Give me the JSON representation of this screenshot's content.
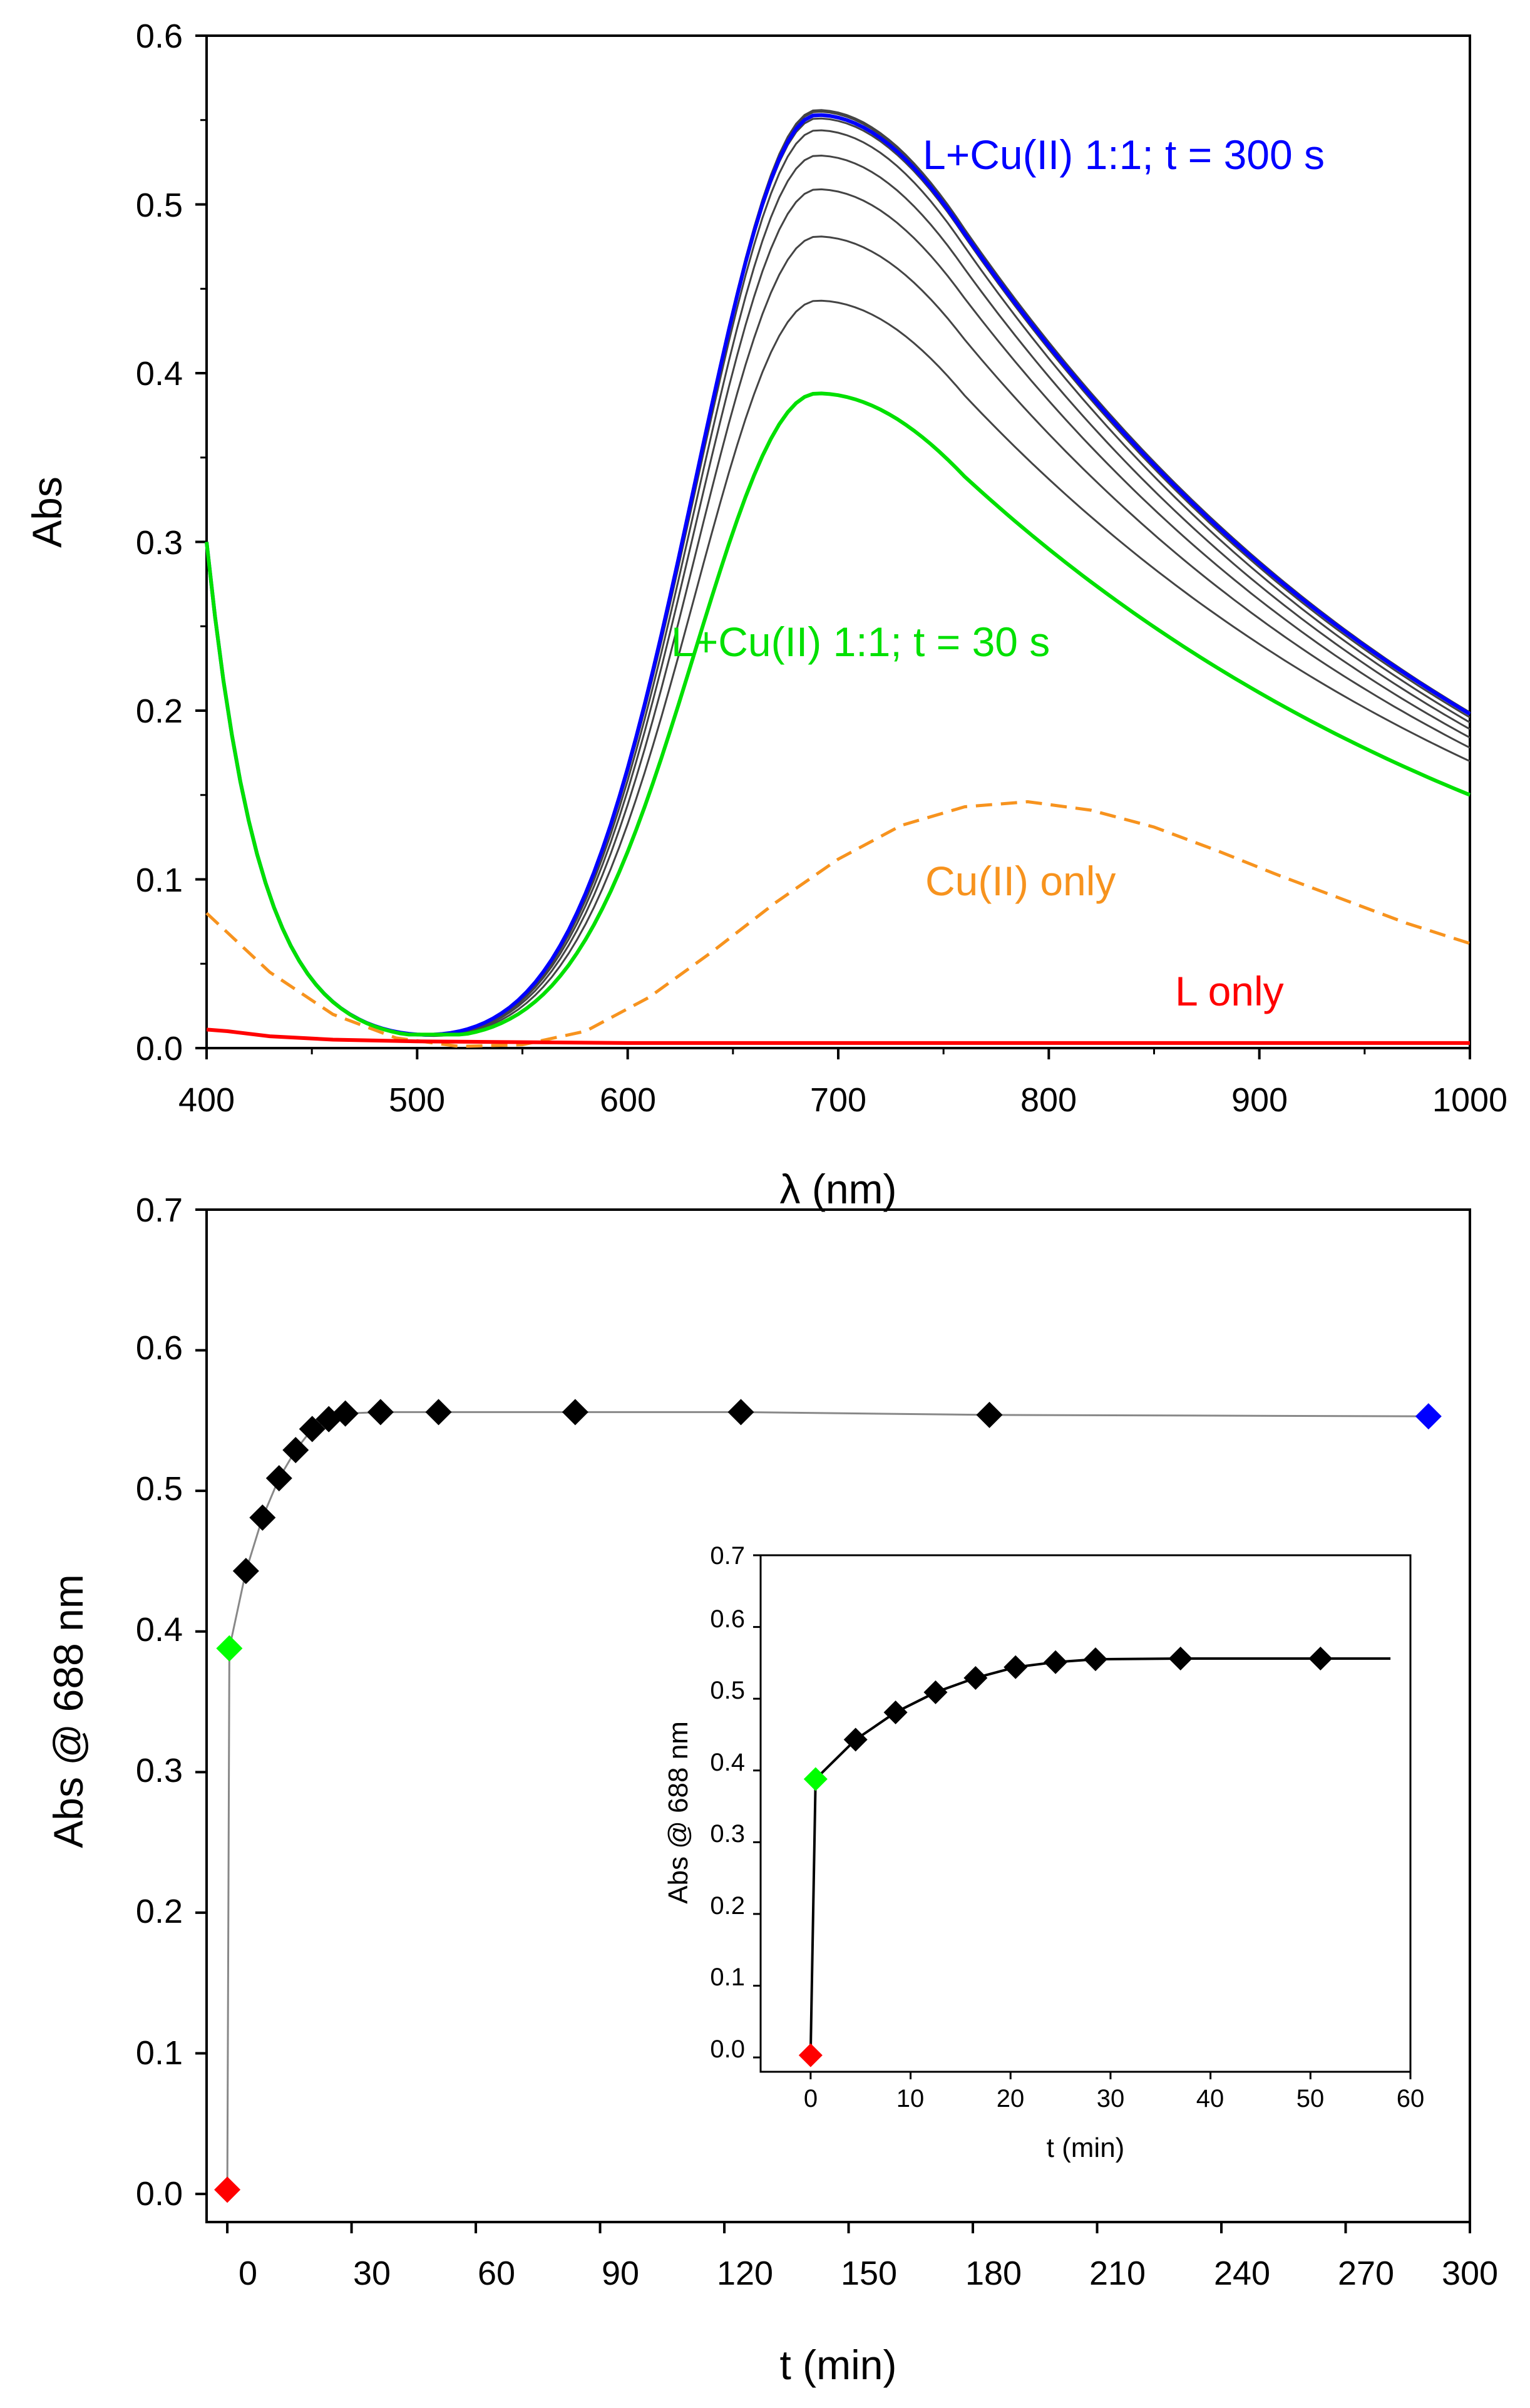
{
  "chart_data": [
    {
      "type": "line",
      "title": "",
      "xlabel": "λ (nm)",
      "ylabel": "Abs",
      "xlim": [
        400,
        1000
      ],
      "ylim": [
        0,
        0.6
      ],
      "xticks": [
        "400",
        "500",
        "600",
        "700",
        "800",
        "900",
        "1000"
      ],
      "yticks": [
        "0.0",
        "0.1",
        "0.2",
        "0.3",
        "0.4",
        "0.5",
        "0.6"
      ],
      "series": [
        {
          "name": "L+Cu(II) 1:1; t = 300 s",
          "color": "#0000ff",
          "style": "solid",
          "peak": 0.553,
          "start": 0.3,
          "min": 0.013,
          "tail": 0.198
        },
        {
          "name": "L+Cu(II) 1:1; t = 30 s",
          "color": "#00e000",
          "style": "solid",
          "peak": 0.388,
          "start": 0.3,
          "min": 0.016,
          "tail": 0.15
        },
        {
          "name": "Cu(II) only",
          "color": "#f7931e",
          "style": "dashed",
          "x": [
            400,
            430,
            460,
            490,
            520,
            550,
            580,
            610,
            640,
            670,
            700,
            730,
            760,
            790,
            820,
            850,
            880,
            910,
            940,
            970,
            1000
          ],
          "y": [
            0.08,
            0.045,
            0.02,
            0.006,
            0.001,
            0.002,
            0.01,
            0.03,
            0.057,
            0.086,
            0.112,
            0.132,
            0.143,
            0.146,
            0.141,
            0.131,
            0.117,
            0.102,
            0.088,
            0.074,
            0.062
          ]
        },
        {
          "name": "L only",
          "color": "#ff0000",
          "style": "solid",
          "x": [
            400,
            410,
            430,
            460,
            500,
            600,
            700,
            800,
            900,
            1000
          ],
          "y": [
            0.011,
            0.01,
            0.007,
            0.005,
            0.004,
            0.003,
            0.003,
            0.003,
            0.003,
            0.003
          ]
        }
      ],
      "intermediate_series": {
        "color": "#444444",
        "peaks": [
          0.443,
          0.481,
          0.509,
          0.529,
          0.544,
          0.551,
          0.555,
          0.556
        ],
        "tails": [
          0.17,
          0.178,
          0.184,
          0.189,
          0.193,
          0.196,
          0.198,
          0.199
        ]
      },
      "annotations": [
        {
          "text": "L+Cu(II) 1:1; t = 300 s",
          "color": "#0000ff"
        },
        {
          "text": "L+Cu(II) 1:1; t = 30 s",
          "color": "#00e000"
        },
        {
          "text": "Cu(II) only",
          "color": "#f7931e"
        },
        {
          "text": "L only",
          "color": "#ff0000"
        }
      ]
    },
    {
      "type": "scatter",
      "title": "",
      "xlabel": "t (min)",
      "ylabel": "Abs @ 688 nm",
      "xlim": [
        -5,
        300
      ],
      "ylim": [
        -0.02,
        0.7
      ],
      "xticks": [
        "0",
        "30",
        "60",
        "90",
        "120",
        "150",
        "180",
        "210",
        "240",
        "270",
        "300"
      ],
      "yticks": [
        "0.0",
        "0.1",
        "0.2",
        "0.3",
        "0.4",
        "0.5",
        "0.6",
        "0.7"
      ],
      "line_color": "#888888",
      "points": {
        "x": [
          0,
          0.5,
          4.5,
          8.5,
          12.5,
          16.5,
          20.5,
          24.5,
          28.5,
          37,
          51,
          84,
          124,
          184,
          290
        ],
        "y": [
          0.003,
          0.388,
          0.443,
          0.481,
          0.509,
          0.529,
          0.544,
          0.551,
          0.555,
          0.556,
          0.556,
          0.556,
          0.556,
          0.554,
          0.553
        ],
        "colors": [
          "#ff0000",
          "#00ff00",
          "#000000",
          "#000000",
          "#000000",
          "#000000",
          "#000000",
          "#000000",
          "#000000",
          "#000000",
          "#000000",
          "#000000",
          "#000000",
          "#000000",
          "#0000ff"
        ]
      }
    },
    {
      "type": "scatter",
      "title": "",
      "xlabel": "t (min)",
      "ylabel": "Abs @ 688 nm",
      "xlim": [
        -5,
        60
      ],
      "ylim": [
        -0.02,
        0.7
      ],
      "xticks": [
        "0",
        "10",
        "20",
        "30",
        "40",
        "50",
        "60"
      ],
      "yticks": [
        "0.0",
        "0.1",
        "0.2",
        "0.3",
        "0.4",
        "0.5",
        "0.6",
        "0.7"
      ],
      "line_color": "#000000",
      "line_end_x": 58,
      "points": {
        "x": [
          0,
          0.5,
          4.5,
          8.5,
          12.5,
          16.5,
          20.5,
          24.5,
          28.5,
          37,
          51
        ],
        "y": [
          0.003,
          0.388,
          0.443,
          0.481,
          0.509,
          0.529,
          0.544,
          0.551,
          0.555,
          0.556,
          0.556
        ],
        "colors": [
          "#ff0000",
          "#00ff00",
          "#000000",
          "#000000",
          "#000000",
          "#000000",
          "#000000",
          "#000000",
          "#000000",
          "#000000",
          "#000000"
        ]
      }
    }
  ]
}
